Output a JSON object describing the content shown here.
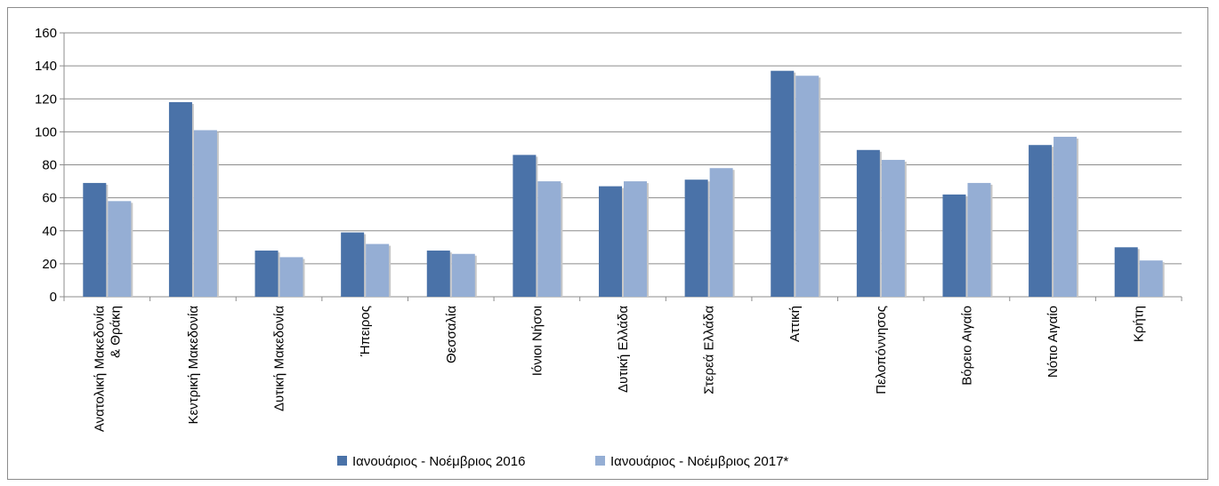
{
  "chart_data": {
    "type": "bar",
    "categories": [
      [
        "Ανατολική Μακεδονία",
        "& Θράκη"
      ],
      [
        "Κεντρική Μακεδονία"
      ],
      [
        "Δυτική Μακεδονία"
      ],
      [
        "Ήπειρος"
      ],
      [
        "Θεσσαλία"
      ],
      [
        "Ιόνιοι Νήσοι"
      ],
      [
        "Δυτική Ελλάδα"
      ],
      [
        "Στερεά Ελλάδα"
      ],
      [
        "Αττική"
      ],
      [
        "Πελοπόννησος"
      ],
      [
        "Βόρειο Αιγαίο"
      ],
      [
        "Νότιο Αιγαίο"
      ],
      [
        "Κρήτη"
      ]
    ],
    "series": [
      {
        "name": "Ιανουάριος - Νοέμβριος 2016",
        "color": "#4a72a8",
        "values": [
          69,
          118,
          28,
          39,
          28,
          86,
          67,
          71,
          137,
          89,
          62,
          92,
          30
        ]
      },
      {
        "name": "Ιανουάριος - Νοέμβριος 2017*",
        "color": "#95aed4",
        "values": [
          58,
          101,
          24,
          32,
          26,
          70,
          70,
          78,
          134,
          83,
          69,
          97,
          22
        ]
      }
    ],
    "ylim": [
      0,
      160
    ],
    "yticks": [
      0,
      20,
      40,
      60,
      80,
      100,
      120,
      140,
      160
    ],
    "grid": true,
    "legend_position": "bottom",
    "title": "",
    "xlabel": "",
    "ylabel": ""
  }
}
